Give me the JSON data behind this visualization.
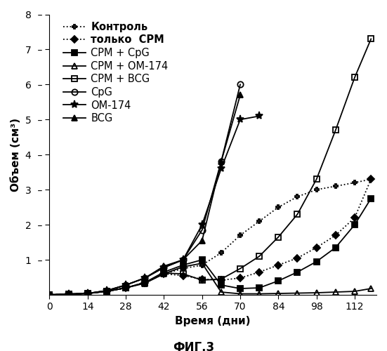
{
  "xlabel": "Время (дни)",
  "ylabel": "Объем (см³)",
  "fig_title": "ФИГ.3",
  "xlim": [
    0,
    120
  ],
  "ylim": [
    0,
    8.0
  ],
  "xticks": [
    0,
    14,
    28,
    42,
    56,
    70,
    84,
    98,
    112
  ],
  "ytick_vals": [
    1,
    2,
    3,
    4,
    5,
    6,
    7,
    8
  ],
  "ytick_labels": [
    "1",
    "2",
    "3",
    "4",
    "5",
    "6",
    "7",
    "8"
  ],
  "series": [
    {
      "label": "Контроль",
      "x": [
        0,
        7,
        14,
        21,
        28,
        35,
        42,
        49,
        56,
        63,
        70,
        77,
        84,
        91,
        98,
        105,
        112,
        118
      ],
      "y": [
        0,
        0.02,
        0.04,
        0.1,
        0.2,
        0.35,
        0.6,
        0.75,
        0.85,
        1.2,
        1.7,
        2.1,
        2.5,
        2.8,
        3.0,
        3.1,
        3.2,
        3.3
      ],
      "linestyle": "dotted",
      "marker": "P",
      "markersize": 5,
      "color": "black",
      "linewidth": 1.3,
      "fillstyle": "none",
      "bold_legend": true
    },
    {
      "label": "только  СРМ",
      "x": [
        0,
        7,
        14,
        21,
        28,
        35,
        42,
        49,
        56,
        63,
        70,
        77,
        84,
        91,
        98,
        105,
        112,
        118
      ],
      "y": [
        0,
        0.02,
        0.04,
        0.1,
        0.2,
        0.35,
        0.6,
        0.55,
        0.45,
        0.42,
        0.48,
        0.65,
        0.85,
        1.05,
        1.35,
        1.7,
        2.2,
        3.3
      ],
      "linestyle": "dotted",
      "marker": "D",
      "markersize": 5,
      "color": "black",
      "linewidth": 1.3,
      "fillstyle": "full",
      "bold_legend": true
    },
    {
      "label": "СРМ + CpG",
      "x": [
        0,
        7,
        14,
        21,
        28,
        35,
        42,
        49,
        56,
        63,
        70,
        77,
        84,
        91,
        98,
        105,
        112,
        118
      ],
      "y": [
        0,
        0.02,
        0.04,
        0.1,
        0.2,
        0.35,
        0.65,
        0.85,
        1.0,
        0.28,
        0.18,
        0.2,
        0.4,
        0.65,
        0.95,
        1.35,
        2.0,
        2.75
      ],
      "linestyle": "solid",
      "marker": "s",
      "markersize": 6,
      "color": "black",
      "linewidth": 1.3,
      "fillstyle": "full",
      "bold_legend": false
    },
    {
      "label": "СРМ + ОМ-174",
      "x": [
        0,
        7,
        14,
        21,
        28,
        35,
        42,
        49,
        56,
        63,
        70,
        77,
        84,
        91,
        98,
        105,
        112,
        118
      ],
      "y": [
        0,
        0.02,
        0.04,
        0.1,
        0.2,
        0.33,
        0.6,
        0.8,
        0.9,
        0.08,
        0.03,
        0.03,
        0.04,
        0.05,
        0.06,
        0.08,
        0.1,
        0.18
      ],
      "linestyle": "solid",
      "marker": "^",
      "markersize": 6,
      "color": "black",
      "linewidth": 1.3,
      "fillstyle": "none",
      "bold_legend": false
    },
    {
      "label": "СРМ + BCG",
      "x": [
        0,
        7,
        14,
        21,
        28,
        35,
        42,
        49,
        56,
        63,
        70,
        77,
        84,
        91,
        98,
        105,
        112,
        118
      ],
      "y": [
        0,
        0.02,
        0.04,
        0.1,
        0.2,
        0.35,
        0.62,
        0.6,
        0.42,
        0.45,
        0.75,
        1.1,
        1.65,
        2.3,
        3.3,
        4.7,
        6.2,
        7.3
      ],
      "linestyle": "solid",
      "marker": "s",
      "markersize": 6,
      "color": "black",
      "linewidth": 1.3,
      "fillstyle": "none",
      "bold_legend": false
    },
    {
      "label": "CpG",
      "x": [
        0,
        7,
        14,
        21,
        28,
        35,
        42,
        49,
        56,
        63,
        70
      ],
      "y": [
        0,
        0.02,
        0.04,
        0.12,
        0.28,
        0.48,
        0.78,
        1.0,
        1.85,
        3.8,
        6.0
      ],
      "linestyle": "solid",
      "marker": "o",
      "markersize": 6,
      "color": "black",
      "linewidth": 1.3,
      "fillstyle": "none",
      "bold_legend": false
    },
    {
      "label": "ОМ-174",
      "x": [
        0,
        7,
        14,
        21,
        28,
        35,
        42,
        49,
        56,
        63,
        70,
        77
      ],
      "y": [
        0,
        0.02,
        0.04,
        0.12,
        0.28,
        0.48,
        0.78,
        1.0,
        2.0,
        3.6,
        5.0,
        5.1
      ],
      "linestyle": "solid",
      "marker": "*",
      "markersize": 8,
      "color": "black",
      "linewidth": 1.3,
      "fillstyle": "full",
      "bold_legend": false
    },
    {
      "label": "BCG",
      "x": [
        0,
        7,
        14,
        21,
        28,
        35,
        42,
        49,
        56,
        63,
        70
      ],
      "y": [
        0,
        0.02,
        0.04,
        0.12,
        0.28,
        0.48,
        0.82,
        1.0,
        1.55,
        3.8,
        5.7
      ],
      "linestyle": "solid",
      "marker": "^",
      "markersize": 6,
      "color": "black",
      "linewidth": 1.3,
      "fillstyle": "full",
      "bold_legend": false
    }
  ],
  "legend_fontsize": 10.5,
  "axis_fontsize": 11,
  "tick_fontsize": 10,
  "fig_title_fontsize": 12
}
